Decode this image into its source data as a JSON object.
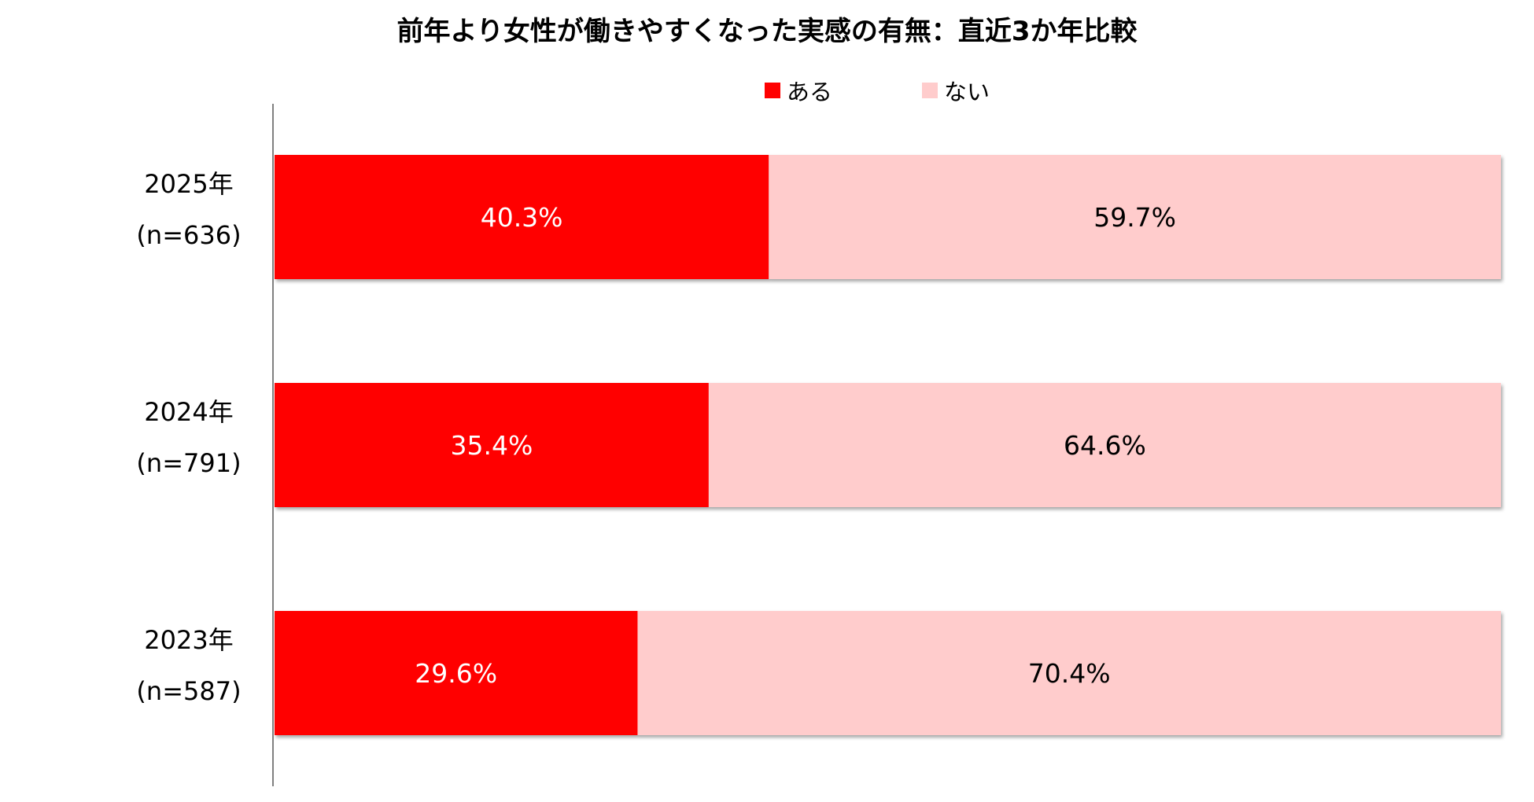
{
  "chart_data": {
    "type": "bar",
    "orientation": "horizontal",
    "stacked": true,
    "percent_stacked": true,
    "title": "前年より女性が働きやすくなった実感の有無：直近3か年比較",
    "xlabel": "",
    "ylabel": "",
    "xlim": [
      0,
      100
    ],
    "grid": false,
    "legend_position": "top",
    "categories": [
      {
        "year": "2025年",
        "n": "(n=636)"
      },
      {
        "year": "2024年",
        "n": "(n=791)"
      },
      {
        "year": "2023年",
        "n": "(n=587)"
      }
    ],
    "series": [
      {
        "name": "ある",
        "color": "#ff0000",
        "label_color": "#ffffff",
        "values": [
          40.3,
          35.4,
          29.6
        ],
        "labels": [
          "40.3%",
          "35.4%",
          "29.6%"
        ]
      },
      {
        "name": "ない",
        "color": "#ffcccc",
        "label_color": "#000000",
        "values": [
          59.7,
          64.6,
          70.4
        ],
        "labels": [
          "59.7%",
          "64.6%",
          "70.4%"
        ]
      }
    ]
  }
}
